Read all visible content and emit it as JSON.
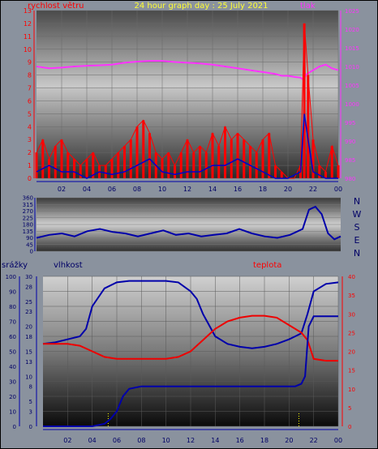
{
  "chart_data": [
    {
      "type": "line",
      "title": "24 hour graph day : 25 July 2021",
      "left_axis_label": "rychlost větru",
      "right_axis_label": "tlak",
      "x_ticks": [
        "02",
        "04",
        "06",
        "08",
        "10",
        "12",
        "14",
        "16",
        "18",
        "20",
        "22",
        "00"
      ],
      "left_ticks": [
        "0",
        "1",
        "2",
        "3",
        "4",
        "5",
        "6",
        "7",
        "8",
        "9",
        "10",
        "11",
        "12",
        "13"
      ],
      "right_ticks": [
        "980",
        "985",
        "990",
        "995",
        "1000",
        "1005",
        "1010",
        "1015",
        "1020",
        "1025"
      ],
      "left_ylim": [
        0,
        13
      ],
      "right_ylim": [
        980,
        1025
      ],
      "series": [
        {
          "role": "pressure",
          "axis": "right",
          "color": "#ff33ff",
          "x": [
            0,
            1,
            2,
            3,
            4,
            5,
            6,
            7,
            8,
            9,
            10,
            11,
            12,
            13,
            14,
            15,
            16,
            17,
            18,
            19,
            19.5,
            20,
            20.5,
            21,
            21.2,
            21.5,
            22,
            22.5,
            23,
            23.5,
            24
          ],
          "y": [
            1010,
            1009.5,
            1009.7,
            1010,
            1010.2,
            1010.3,
            1010.5,
            1011,
            1011.3,
            1011.5,
            1011.5,
            1011.2,
            1011,
            1010.8,
            1010.5,
            1010,
            1009.5,
            1009,
            1008.5,
            1008,
            1007.5,
            1007.5,
            1007.2,
            1007,
            1006.5,
            1008,
            1009,
            1010,
            1010.5,
            1009.5,
            1009
          ]
        },
        {
          "role": "wind-gust",
          "axis": "left",
          "color": "#ff0000",
          "x": [
            0,
            0.5,
            1,
            1.5,
            2,
            2.5,
            3,
            3.5,
            4,
            4.5,
            5,
            5.5,
            6,
            6.5,
            7,
            7.5,
            8,
            8.5,
            9,
            9.5,
            10,
            10.5,
            11,
            11.5,
            12,
            12.5,
            13,
            13.5,
            14,
            14.5,
            15,
            15.5,
            16,
            16.5,
            17,
            17.5,
            18,
            18.5,
            19,
            19.5,
            20,
            20.5,
            21,
            21.3,
            21.6,
            22,
            22.5,
            23,
            23.5,
            24
          ],
          "y": [
            2,
            3,
            1.5,
            2.5,
            3,
            2,
            1.5,
            1,
            1.5,
            2,
            1,
            1,
            1.5,
            2,
            2.5,
            3,
            4,
            4.5,
            3.5,
            2,
            1.5,
            2,
            1,
            2,
            3,
            2,
            2.5,
            2,
            3.5,
            2.5,
            4,
            3,
            3.5,
            3,
            2.5,
            2,
            3,
            3.5,
            1,
            0.5,
            0,
            0,
            1,
            12,
            8,
            3,
            1,
            0.5,
            2.5,
            1
          ]
        },
        {
          "role": "wind-average",
          "axis": "left",
          "color": "#0000cc",
          "x": [
            0,
            1,
            2,
            3,
            4,
            5,
            6,
            7,
            8,
            9,
            10,
            11,
            12,
            13,
            14,
            15,
            16,
            17,
            18,
            19,
            20,
            21,
            21.3,
            21.6,
            22,
            23,
            24
          ],
          "y": [
            0.5,
            1,
            0.5,
            0.5,
            0,
            0.5,
            0.3,
            0.5,
            1,
            1.5,
            0.5,
            0.3,
            0.5,
            0.5,
            1,
            1,
            1.5,
            1,
            0.5,
            0,
            0,
            0.5,
            5,
            3,
            0.5,
            0,
            0
          ]
        }
      ]
    },
    {
      "type": "scatter",
      "title": "",
      "left_ticks": [
        "0",
        "45",
        "90",
        "135",
        "180",
        "225",
        "270",
        "315",
        "360"
      ],
      "right_labels": [
        "N",
        "W",
        "S",
        "E",
        "N"
      ],
      "ylim": [
        0,
        360
      ],
      "series": [
        {
          "role": "wind-direction",
          "color": "#0000aa",
          "x": [
            0,
            1,
            2,
            3,
            4,
            5,
            6,
            7,
            8,
            9,
            10,
            11,
            12,
            13,
            14,
            15,
            16,
            17,
            18,
            19,
            20,
            21,
            21.5,
            22,
            22.5,
            23,
            23.5,
            24
          ],
          "y": [
            90,
            110,
            120,
            100,
            135,
            150,
            130,
            120,
            100,
            120,
            140,
            110,
            120,
            100,
            110,
            120,
            150,
            120,
            100,
            90,
            110,
            150,
            280,
            300,
            250,
            120,
            80,
            100
          ]
        }
      ]
    },
    {
      "type": "line",
      "title": "",
      "left_axis_label": "srážky",
      "middle_axis_label": "vlhkost",
      "right_axis_label": "teplota",
      "x_ticks": [
        "02",
        "04",
        "06",
        "08",
        "10",
        "12",
        "14",
        "16",
        "18",
        "20",
        "22",
        "00"
      ],
      "humidity_ticks": [
        "0",
        "10",
        "20",
        "30",
        "40",
        "50",
        "60",
        "70",
        "80",
        "90",
        "100"
      ],
      "rain_ticks": [
        "0",
        "3",
        "5",
        "8",
        "10",
        "13",
        "15",
        "18",
        "20",
        "23",
        "25",
        "28",
        "30"
      ],
      "temperature_ticks": [
        "0",
        "5",
        "10",
        "15",
        "20",
        "25",
        "30",
        "35",
        "40"
      ],
      "humidity_ylim": [
        0,
        100
      ],
      "rain_ylim": [
        0,
        30
      ],
      "temperature_ylim": [
        0,
        40
      ],
      "series": [
        {
          "role": "humidity",
          "axis": "humidity",
          "color": "#0000aa",
          "x": [
            0,
            1,
            2,
            3,
            3.5,
            4,
            5,
            6,
            7,
            8,
            9,
            10,
            11,
            12,
            12.5,
            13,
            14,
            15,
            16,
            17,
            18,
            19,
            20,
            20.5,
            21,
            21.5,
            22,
            23,
            24
          ],
          "y": [
            55,
            56,
            58,
            60,
            65,
            80,
            92,
            96,
            97,
            97,
            97,
            97,
            96,
            90,
            85,
            75,
            60,
            55,
            53,
            52,
            53,
            55,
            58,
            60,
            62,
            75,
            90,
            95,
            96
          ]
        },
        {
          "role": "temperature",
          "axis": "temperature",
          "color": "#ee0000",
          "x": [
            0,
            1,
            2,
            3,
            4,
            5,
            6,
            7,
            8,
            9,
            10,
            11,
            12,
            13,
            14,
            15,
            16,
            17,
            18,
            19,
            20,
            21,
            21.5,
            22,
            23,
            24
          ],
          "y": [
            22,
            22,
            22,
            21.5,
            20,
            18.5,
            18,
            18,
            18,
            18,
            18,
            18.5,
            20,
            23,
            26,
            28,
            29,
            29.5,
            29.5,
            29,
            27,
            25,
            23,
            18,
            17.5,
            17.5
          ]
        },
        {
          "role": "rain",
          "axis": "rain",
          "color": "#0000aa",
          "x": [
            0,
            4,
            5,
            5.5,
            6,
            6.5,
            7,
            8,
            9,
            10,
            20.5,
            21,
            21.3,
            21.6,
            22,
            23,
            24
          ],
          "y": [
            0,
            0,
            0.5,
            1.5,
            3,
            6,
            7.5,
            8,
            8,
            8,
            8,
            8.5,
            10,
            20,
            22,
            22,
            22
          ]
        }
      ]
    }
  ]
}
